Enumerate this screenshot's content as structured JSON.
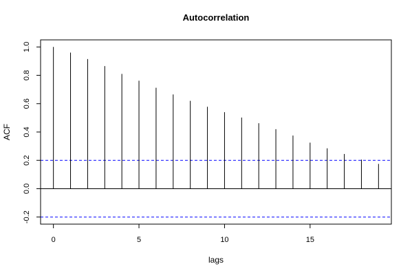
{
  "chart_data": {
    "type": "bar",
    "title": "Autocorrelation",
    "xlabel": "lags",
    "ylabel": "ACF",
    "x": [
      0,
      1,
      2,
      3,
      4,
      5,
      6,
      7,
      8,
      9,
      10,
      11,
      12,
      13,
      14,
      15,
      16,
      17,
      18,
      19
    ],
    "values": [
      1.0,
      0.96,
      0.915,
      0.865,
      0.81,
      0.762,
      0.712,
      0.665,
      0.62,
      0.578,
      0.54,
      0.502,
      0.462,
      0.42,
      0.375,
      0.325,
      0.285,
      0.245,
      0.205,
      0.175
    ],
    "xlim": [
      -0.75,
      19.75
    ],
    "ylim": [
      -0.25,
      1.05
    ],
    "x_ticks": [
      0,
      5,
      10,
      15
    ],
    "y_ticks": [
      -0.2,
      0.0,
      0.2,
      0.4,
      0.6,
      0.8,
      1.0
    ],
    "y_tick_labels": [
      "-0.2",
      "0.0",
      "0.2",
      "0.4",
      "0.6",
      "0.8",
      "1.0"
    ],
    "confidence_bounds": [
      0.2,
      -0.2
    ],
    "zero_line": true,
    "grid": false,
    "colors": {
      "bars": "#000000",
      "confidence": "#0000ff",
      "axes": "#000000"
    }
  }
}
